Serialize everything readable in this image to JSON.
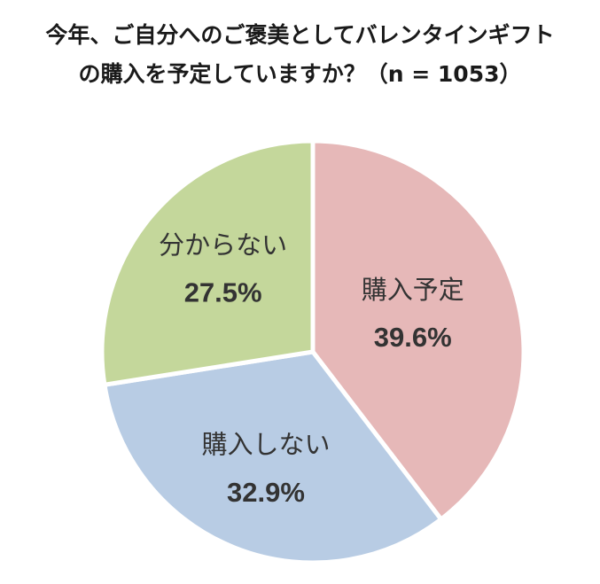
{
  "chart_data": {
    "type": "pie",
    "title_lines": [
      "今年、ご自分へのご褒美としてバレンタインギフト",
      "の購入を予定していますか？（n = 1053）"
    ],
    "slices": [
      {
        "label": "購入予定",
        "value": 39.6,
        "value_label": "39.6%",
        "color": "#e6b8b8"
      },
      {
        "label": "購入しない",
        "value": 32.9,
        "value_label": "32.9%",
        "color": "#b8cce4"
      },
      {
        "label": "分からない",
        "value": 27.5,
        "value_label": "27.5%",
        "color": "#c4d79b"
      }
    ],
    "start": "12 o'clock",
    "direction": "clockwise"
  }
}
